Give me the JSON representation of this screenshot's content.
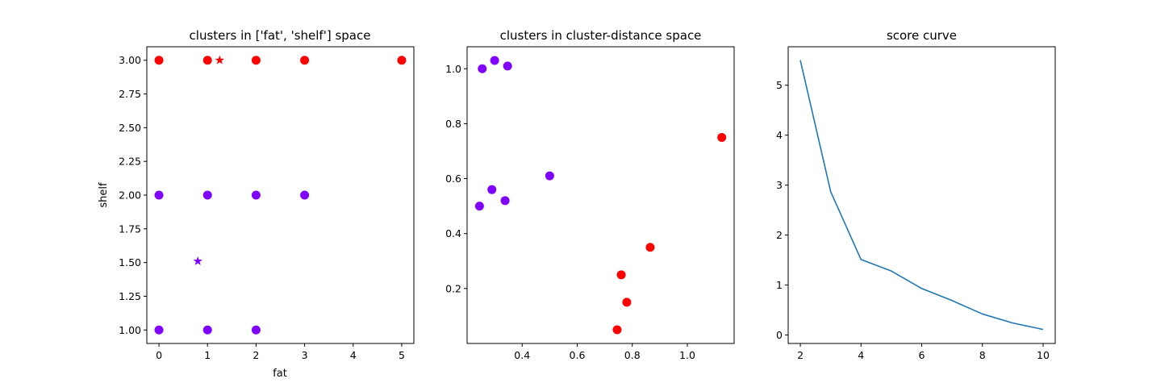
{
  "chart_data": [
    {
      "type": "scatter",
      "title": "clusters in ['fat', 'shelf'] space",
      "xlabel": "fat",
      "ylabel": "shelf",
      "xlim": [
        -0.25,
        5.25
      ],
      "ylim": [
        0.9,
        3.1
      ],
      "xticks": [
        0,
        1,
        2,
        3,
        4,
        5
      ],
      "yticks": [
        1.0,
        1.25,
        1.5,
        1.75,
        2.0,
        2.25,
        2.5,
        2.75,
        3.0
      ],
      "xtick_labels": [
        "0",
        "1",
        "2",
        "3",
        "4",
        "5"
      ],
      "ytick_labels": [
        "1.00",
        "1.25",
        "1.50",
        "1.75",
        "2.00",
        "2.25",
        "2.50",
        "2.75",
        "3.00"
      ],
      "series": [
        {
          "color": "#8000ff",
          "marker": "circle",
          "x": [
            0,
            1,
            2,
            0,
            1,
            2,
            3
          ],
          "y": [
            1,
            1,
            1,
            2,
            2,
            2,
            2
          ]
        },
        {
          "color": "#ff0000",
          "marker": "circle",
          "x": [
            0,
            1,
            2,
            3,
            5
          ],
          "y": [
            3,
            3,
            3,
            3,
            3
          ]
        },
        {
          "color": "#8000ff",
          "marker": "star",
          "x": [
            0.8
          ],
          "y": [
            1.51
          ]
        },
        {
          "color": "#ff0000",
          "marker": "star",
          "x": [
            1.25
          ],
          "y": [
            3.0
          ]
        }
      ]
    },
    {
      "type": "scatter",
      "title": "clusters in cluster-distance space",
      "xlabel": "",
      "ylabel": "",
      "xlim": [
        0.2,
        1.17
      ],
      "ylim": [
        0.0,
        1.08
      ],
      "xticks": [
        0.4,
        0.6,
        0.8,
        1.0
      ],
      "yticks": [
        0.2,
        0.4,
        0.6,
        0.8,
        1.0
      ],
      "xtick_labels": [
        "0.4",
        "0.6",
        "0.8",
        "1.0"
      ],
      "ytick_labels": [
        "0.2",
        "0.4",
        "0.6",
        "0.8",
        "1.0"
      ],
      "series": [
        {
          "color": "#8000ff",
          "marker": "circle",
          "x": [
            0.255,
            0.3,
            0.347,
            0.245,
            0.29,
            0.338,
            0.5
          ],
          "y": [
            1.0,
            1.03,
            1.01,
            0.5,
            0.56,
            0.52,
            0.61
          ]
        },
        {
          "color": "#ff0000",
          "marker": "circle",
          "x": [
            0.745,
            0.76,
            0.78,
            0.865,
            1.125
          ],
          "y": [
            0.05,
            0.25,
            0.15,
            0.35,
            0.75
          ]
        }
      ]
    },
    {
      "type": "line",
      "title": "score curve",
      "xlabel": "",
      "ylabel": "",
      "xlim": [
        1.6,
        10.4
      ],
      "ylim": [
        -0.17,
        5.77
      ],
      "xticks": [
        2,
        4,
        6,
        8,
        10
      ],
      "yticks": [
        0,
        1,
        2,
        3,
        4,
        5
      ],
      "xtick_labels": [
        "2",
        "4",
        "6",
        "8",
        "10"
      ],
      "ytick_labels": [
        "0",
        "1",
        "2",
        "3",
        "4",
        "5"
      ],
      "series": [
        {
          "color": "#1f77b4",
          "x": [
            2,
            3,
            4,
            5,
            6,
            7,
            8,
            9,
            10
          ],
          "y": [
            5.5,
            2.87,
            1.51,
            1.28,
            0.93,
            0.69,
            0.42,
            0.24,
            0.11
          ]
        }
      ]
    }
  ]
}
